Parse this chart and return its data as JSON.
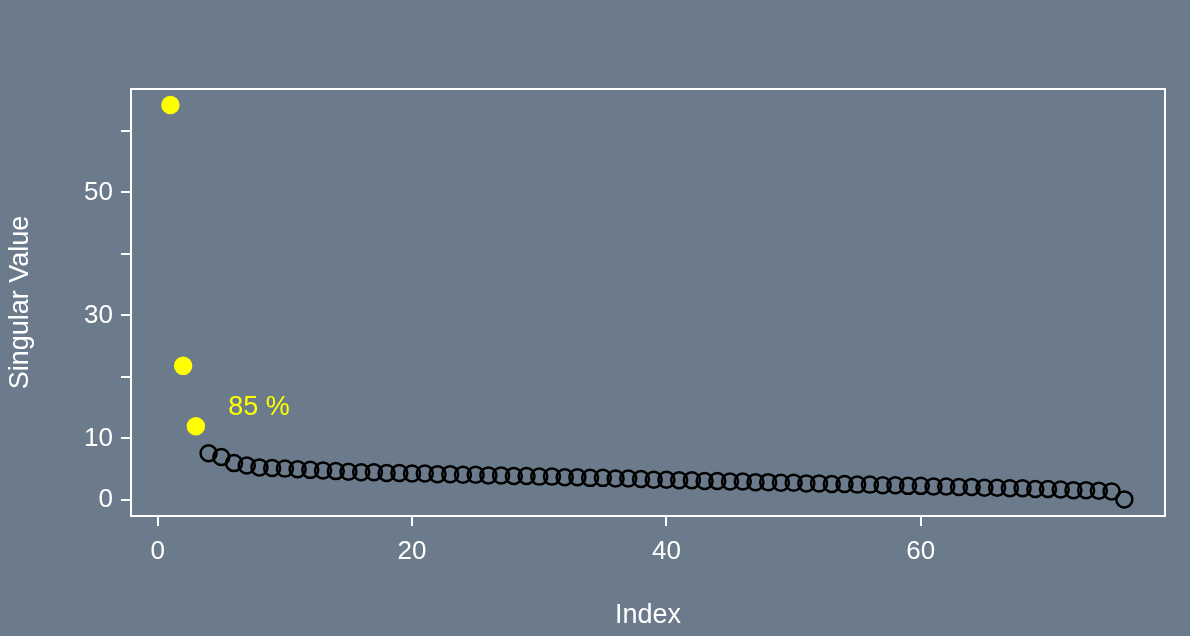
{
  "chart_data": {
    "type": "scatter",
    "xlabel": "Index",
    "ylabel": "Singular Value",
    "xlim": [
      -2.1,
      79.2
    ],
    "ylim": [
      -2.6,
      66.8
    ],
    "xticks": [
      0,
      20,
      40,
      60
    ],
    "yticks": [
      0,
      10,
      {
        "value": 20,
        "label": null
      },
      30,
      {
        "value": 40,
        "label": null
      },
      50,
      {
        "value": 60,
        "label": null
      }
    ],
    "grid": false,
    "legend": false,
    "marker": "circle",
    "annotations": [
      "85 %"
    ],
    "series": [
      {
        "color": "#ffff00",
        "x": [
          1,
          2,
          3
        ],
        "values": [
          64.2,
          21.8,
          12.0
        ]
      },
      {
        "color": "#000000",
        "x": [
          4,
          5,
          6,
          7,
          8,
          9,
          10,
          11,
          12,
          13,
          14,
          15,
          16,
          17,
          18,
          19,
          20,
          21,
          22,
          23,
          24,
          25,
          26,
          27,
          28,
          29,
          30,
          31,
          32,
          33,
          34,
          35,
          36,
          37,
          38,
          39,
          40,
          41,
          42,
          43,
          44,
          45,
          46,
          47,
          48,
          49,
          50,
          51,
          52,
          53,
          54,
          55,
          56,
          57,
          58,
          59,
          60,
          61,
          62,
          63,
          64,
          65,
          66,
          67,
          68,
          69,
          70,
          71,
          72,
          73,
          74,
          75,
          76
        ],
        "values": [
          7.6,
          7.0,
          6.0,
          5.6,
          5.3,
          5.2,
          5.1,
          5.0,
          4.9,
          4.8,
          4.7,
          4.6,
          4.5,
          4.5,
          4.4,
          4.4,
          4.3,
          4.3,
          4.2,
          4.2,
          4.1,
          4.1,
          4.0,
          4.0,
          3.9,
          3.9,
          3.8,
          3.8,
          3.7,
          3.7,
          3.6,
          3.6,
          3.5,
          3.5,
          3.4,
          3.3,
          3.3,
          3.2,
          3.2,
          3.1,
          3.1,
          3.0,
          3.0,
          2.9,
          2.9,
          2.8,
          2.8,
          2.7,
          2.7,
          2.6,
          2.6,
          2.5,
          2.5,
          2.4,
          2.4,
          2.3,
          2.3,
          2.2,
          2.2,
          2.1,
          2.1,
          2.0,
          2.0,
          1.9,
          1.9,
          1.8,
          1.8,
          1.7,
          1.6,
          1.6,
          1.5,
          1.4,
          0.1
        ]
      }
    ]
  }
}
